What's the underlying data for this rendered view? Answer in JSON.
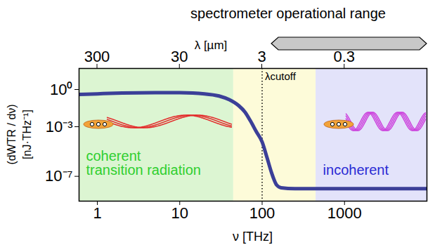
{
  "chart_data": {
    "type": "line",
    "xlabel": "ν [THz]",
    "ylabel": [
      "(dWTR / dν)",
      "[nJ·THz⁻¹]"
    ],
    "log": true,
    "xlim": [
      0.6,
      10000
    ],
    "xticks": [
      1,
      10,
      100,
      1000
    ],
    "ylim": [
      1e-09,
      50
    ],
    "yticks": [
      {
        "value": 1,
        "label": "10⁰"
      },
      {
        "value": 0.001,
        "label": "10⁻³"
      },
      {
        "value": 1e-07,
        "label": "10⁻⁷"
      }
    ],
    "x2label": "λ [µm]",
    "x2lim": [
      500,
      0.03
    ],
    "x2ticks": [
      300,
      30,
      3,
      0.3
    ],
    "color": "#3b3f98",
    "x": [
      0.6,
      1,
      2,
      5,
      10,
      20,
      30,
      40,
      52,
      62,
      72,
      85,
      100,
      115,
      130,
      150,
      170,
      250,
      1000,
      10000
    ],
    "values": [
      0.4,
      0.45,
      0.52,
      0.56,
      0.55,
      0.45,
      0.3,
      0.15,
      0.05,
      0.015,
      0.003,
      0.0004,
      6e-05,
      3e-06,
      2e-07,
      2e-08,
      1.2e-08,
      1e-08,
      1e-08,
      1e-08
    ],
    "regions": [
      {
        "label": "coherent\ntransition radiation",
        "from": 0.6,
        "to": 45,
        "color": "#dcf5d2"
      },
      {
        "from": 45,
        "to": 450,
        "color": "#fdfbd9"
      },
      {
        "label": "incoherent",
        "from": 450,
        "to": 10000,
        "color": "#e3e3fa"
      }
    ],
    "cutoff": {
      "label": "λcutoff",
      "x": 100,
      "line_style": "dotted"
    },
    "spectrometer_range": {
      "label": "spectrometer operational range",
      "from": 2.3,
      "to": 0.03
    }
  }
}
